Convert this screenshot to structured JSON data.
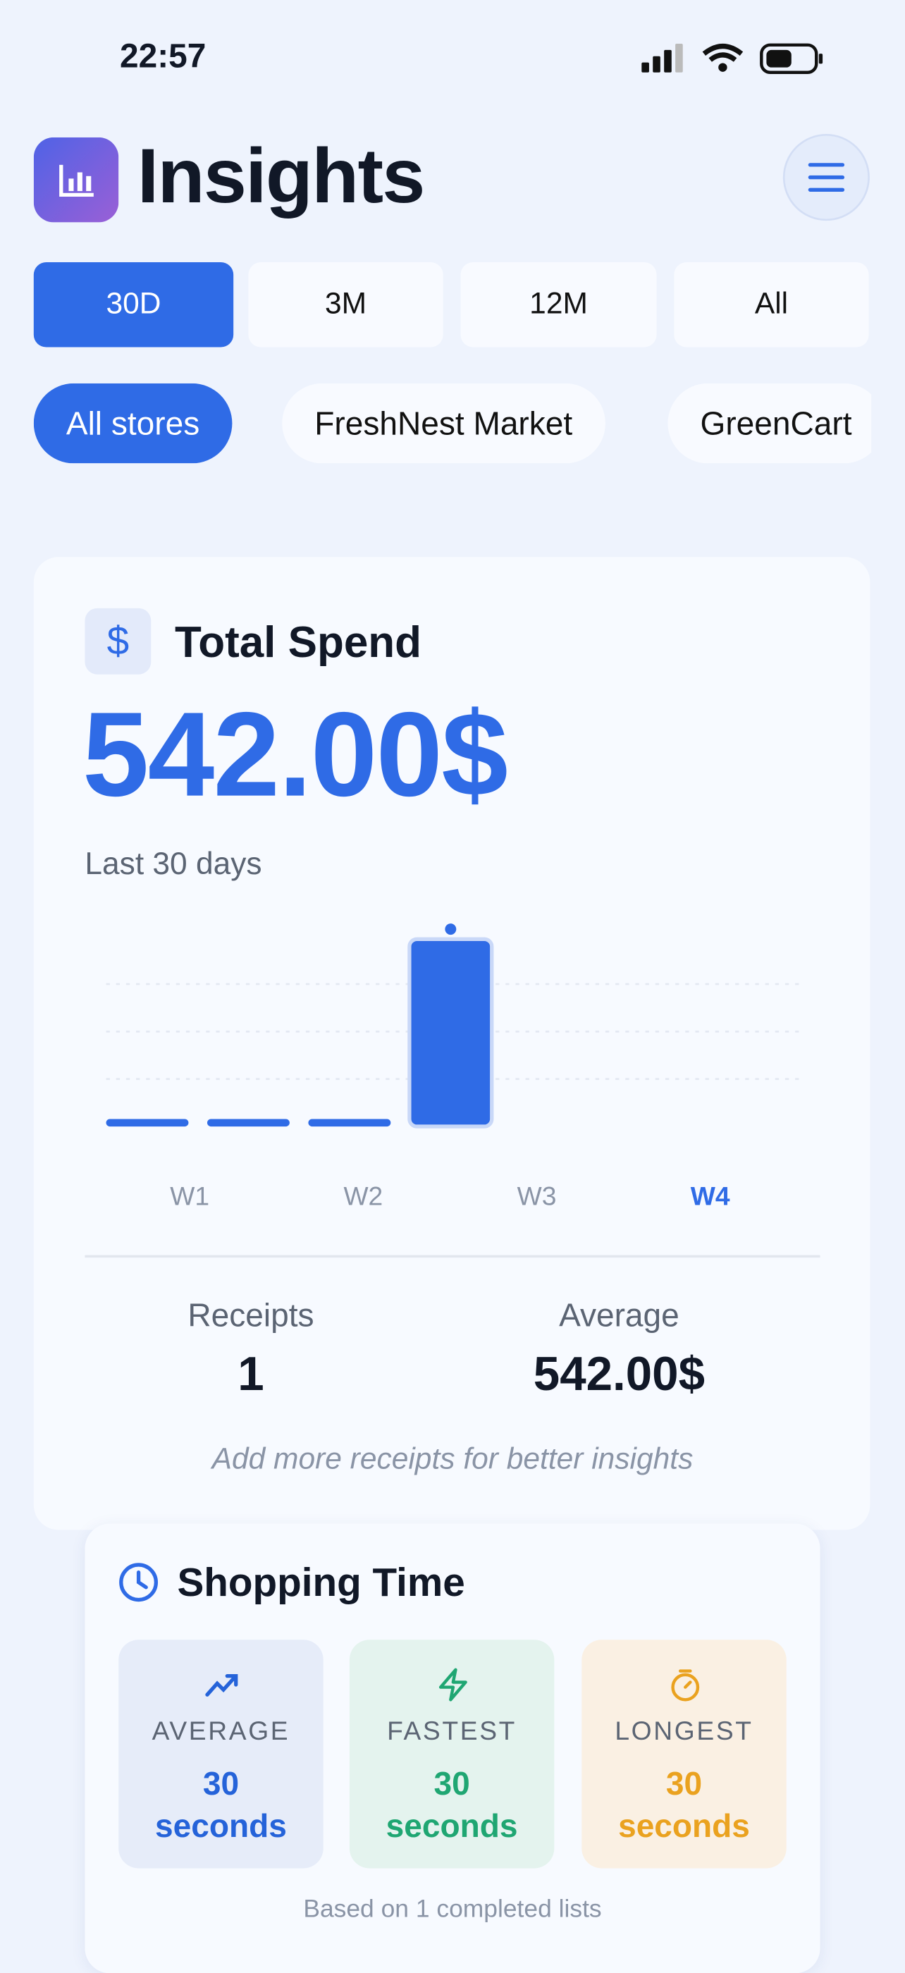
{
  "status_bar": {
    "time": "22:57"
  },
  "header": {
    "title": "Insights"
  },
  "period_tabs": {
    "items": [
      "30D",
      "3M",
      "12M",
      "All"
    ],
    "active": 0
  },
  "store_filters": {
    "items": [
      "All stores",
      "FreshNest Market",
      "GreenCart"
    ],
    "active": 0
  },
  "spend_card": {
    "icon": "$",
    "title": "Total Spend",
    "amount": "542.00$",
    "subtitle": "Last 30 days",
    "receipts_label": "Receipts",
    "receipts_value": "1",
    "average_label": "Average",
    "average_value": "542.00$",
    "hint": "Add more receipts for better insights"
  },
  "chart_data": {
    "type": "bar",
    "categories": [
      "W1",
      "W2",
      "W3",
      "W4"
    ],
    "values": [
      0,
      0,
      0,
      542
    ],
    "color": "#2f6be6",
    "grid": true
  },
  "shopping_time": {
    "title": "Shopping Time",
    "stats": [
      {
        "label": "AVERAGE",
        "value": 30,
        "unit": "seconds",
        "color": "#2563d9"
      },
      {
        "label": "FASTEST",
        "value": 30,
        "unit": "seconds",
        "color": "#1fa672"
      },
      {
        "label": "LONGEST",
        "value": 30,
        "unit": "seconds",
        "color": "#eaa21f"
      }
    ],
    "footer": "Based on 1 completed lists"
  }
}
